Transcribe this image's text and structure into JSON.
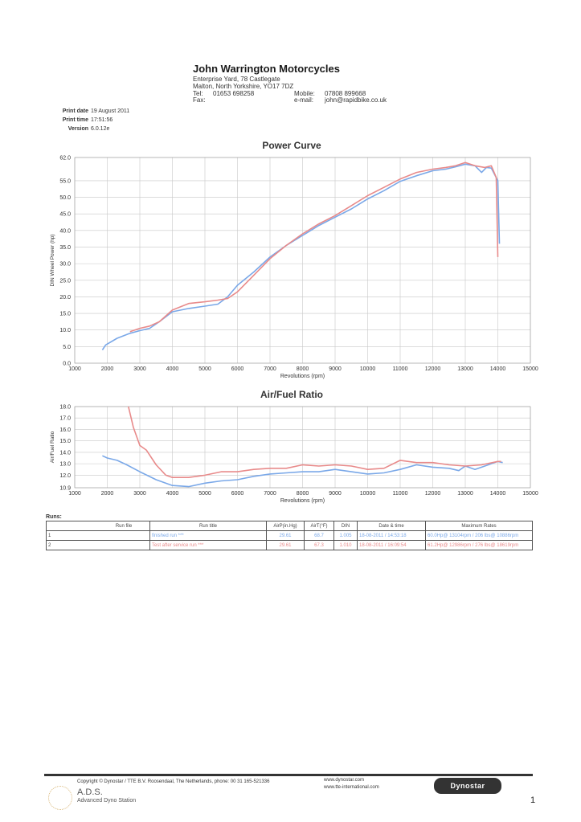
{
  "header": {
    "company": "John Warrington Motorcycles",
    "address1": "Enterprise Yard, 78 Castlegate",
    "address2": "Malton, North Yorkshire, YO17 7DZ",
    "tel_label": "Tel:",
    "tel": "01653 698258",
    "fax_label": "Fax:",
    "mobile_label": "Mobile:",
    "mobile": "07808 899668",
    "email_label": "e-mail:",
    "email": "john@rapidbike.co.uk"
  },
  "meta": {
    "print_date_label": "Print date",
    "print_date": "19 August 2011",
    "print_time_label": "Print time",
    "print_time": "17:51:56",
    "version_label": "Version",
    "version": "6.0.12e"
  },
  "colors": {
    "run1": "#7aa8e8",
    "run2": "#e88a8a"
  },
  "chart_data": [
    {
      "type": "line",
      "title": "Power Curve",
      "xlabel": "Revolutions (rpm)",
      "ylabel": "DIN Wheel Power (hp)",
      "xlim": [
        1000,
        15000
      ],
      "ylim": [
        0,
        62
      ],
      "xticks": [
        1000,
        2000,
        3000,
        4000,
        5000,
        6000,
        7000,
        8000,
        9000,
        10000,
        11000,
        12000,
        13000,
        14000,
        15000
      ],
      "xtick_labels": [
        "1000",
        "2000",
        "3000",
        "4000",
        "5000",
        "6000",
        "7000",
        "8000",
        "9000",
        "10000",
        "11000",
        "12000",
        "13000",
        "14000",
        "15000"
      ],
      "yticks": [
        0,
        5,
        10,
        15,
        20,
        25,
        30,
        35,
        40,
        45,
        50,
        55,
        62
      ],
      "ytick_labels": [
        "0.0",
        "5.0",
        "10.0",
        "15.0",
        "20.0",
        "25.0",
        "30.0",
        "35.0",
        "40.0",
        "45.0",
        "50.0",
        "55.0",
        "62.0"
      ],
      "grid": true,
      "series": [
        {
          "color": "#7aa8e8",
          "x": [
            1850,
            1950,
            2300,
            2700,
            3000,
            3300,
            3600,
            4000,
            4500,
            5000,
            5400,
            5700,
            6000,
            6500,
            7000,
            7500,
            8000,
            8500,
            9000,
            9500,
            10000,
            10500,
            11000,
            11500,
            12000,
            12400,
            12700,
            13000,
            13300,
            13500,
            13650,
            13800,
            14000,
            14050
          ],
          "y": [
            4,
            5.5,
            7.5,
            9,
            9.8,
            10.5,
            12.5,
            15.5,
            16.5,
            17.2,
            17.8,
            20,
            23.5,
            27.5,
            32,
            35.5,
            38.5,
            41.5,
            44,
            46.5,
            49.5,
            52,
            54.8,
            56.5,
            58,
            58.5,
            59.2,
            60,
            59.5,
            57.5,
            59,
            58.8,
            55,
            36
          ]
        },
        {
          "color": "#e88a8a",
          "x": [
            2700,
            3000,
            3300,
            3600,
            4000,
            4500,
            5000,
            5400,
            5700,
            6000,
            6500,
            7000,
            7500,
            8000,
            8500,
            9000,
            9500,
            10000,
            10500,
            11000,
            11500,
            12000,
            12400,
            12700,
            13000,
            13300,
            13600,
            13800,
            13950,
            14000
          ],
          "y": [
            9.5,
            10.5,
            11.2,
            12.5,
            16,
            18,
            18.5,
            19,
            19.5,
            21.5,
            26.5,
            31.5,
            35.5,
            39,
            42,
            44.5,
            47.5,
            50.5,
            53,
            55.5,
            57.5,
            58.5,
            59,
            59.5,
            60.5,
            59.5,
            59,
            59.5,
            56,
            32
          ]
        }
      ]
    },
    {
      "type": "line",
      "title": "Air/Fuel Ratio",
      "xlabel": "Revolutions (rpm)",
      "ylabel": "Air/Fuel Ratio",
      "xlim": [
        1000,
        15000
      ],
      "ylim": [
        10.9,
        18.0
      ],
      "xticks": [
        1000,
        2000,
        3000,
        4000,
        5000,
        6000,
        7000,
        8000,
        9000,
        10000,
        11000,
        12000,
        13000,
        14000,
        15000
      ],
      "xtick_labels": [
        "1000",
        "2000",
        "3000",
        "4000",
        "5000",
        "6000",
        "7000",
        "8000",
        "9000",
        "10000",
        "11000",
        "12000",
        "13000",
        "14000",
        "15000"
      ],
      "yticks": [
        10.9,
        12,
        13,
        14,
        15,
        16,
        17,
        18
      ],
      "ytick_labels": [
        "10.9",
        "12.0",
        "13.0",
        "14.0",
        "15.0",
        "16.0",
        "17.0",
        "18.0"
      ],
      "grid": true,
      "series": [
        {
          "color": "#7aa8e8",
          "x": [
            1850,
            2000,
            2300,
            2600,
            3000,
            3500,
            4000,
            4500,
            5000,
            5500,
            6000,
            6500,
            7000,
            7500,
            8000,
            8500,
            9000,
            9500,
            10000,
            10500,
            11000,
            11500,
            12000,
            12500,
            12800,
            13000,
            13300,
            13600,
            14000,
            14150
          ],
          "y": [
            13.7,
            13.5,
            13.3,
            12.9,
            12.3,
            11.6,
            11.1,
            11.0,
            11.3,
            11.5,
            11.6,
            11.9,
            12.1,
            12.2,
            12.3,
            12.3,
            12.5,
            12.3,
            12.1,
            12.2,
            12.5,
            12.9,
            12.7,
            12.6,
            12.4,
            12.8,
            12.5,
            12.8,
            13.2,
            13.1
          ]
        },
        {
          "color": "#e88a8a",
          "x": [
            2650,
            2800,
            3000,
            3200,
            3500,
            3800,
            4000,
            4500,
            5000,
            5500,
            6000,
            6500,
            7000,
            7500,
            8000,
            8500,
            9000,
            9500,
            10000,
            10500,
            11000,
            11500,
            12000,
            12500,
            13000,
            13500,
            14000,
            14100
          ],
          "y": [
            18.0,
            16.2,
            14.6,
            14.2,
            12.9,
            12.0,
            11.8,
            11.8,
            12.0,
            12.3,
            12.3,
            12.5,
            12.6,
            12.6,
            12.9,
            12.8,
            12.9,
            12.8,
            12.5,
            12.6,
            13.3,
            13.1,
            13.1,
            12.9,
            12.8,
            12.9,
            13.2,
            13.2
          ]
        }
      ]
    }
  ],
  "runs": {
    "heading": "Runs:",
    "headers": [
      "Run file",
      "Run title",
      "AirP(in.Hg)",
      "AirT(°F)",
      "DIN",
      "Date & time",
      "Maximum Rates"
    ],
    "rows": [
      {
        "num": "1",
        "title": "finished run ***",
        "airp": "29.61",
        "airt": "68.7",
        "din": "1.005",
        "date": "18-08-2011 / 14:53:18",
        "max": "60.0Hp@ 13104rpm / 206 lbs@ 10886rpm",
        "color": "#7aa8e8"
      },
      {
        "num": "2",
        "title": "Test after service run ***",
        "airp": "29.61",
        "airt": "67.3",
        "din": "1.010",
        "date": "18-08-2011 / 16:09:54",
        "max": "61.2Hp@ 12986rpm / 276 lbs@ 18619rpm",
        "color": "#e88a8a"
      }
    ]
  },
  "footer": {
    "copyright": "Copyright ©  Dynostar / TTE B.V. Roosendaal, The Netherlands, phone: 00 31 165-521336",
    "web1": "www.dynostar.com",
    "web2": "www.tte-international.com",
    "ads": "A.D.S.",
    "ads_sub": "Advanced Dyno Station",
    "logo_text": "Dynostar",
    "page_number": "1"
  }
}
